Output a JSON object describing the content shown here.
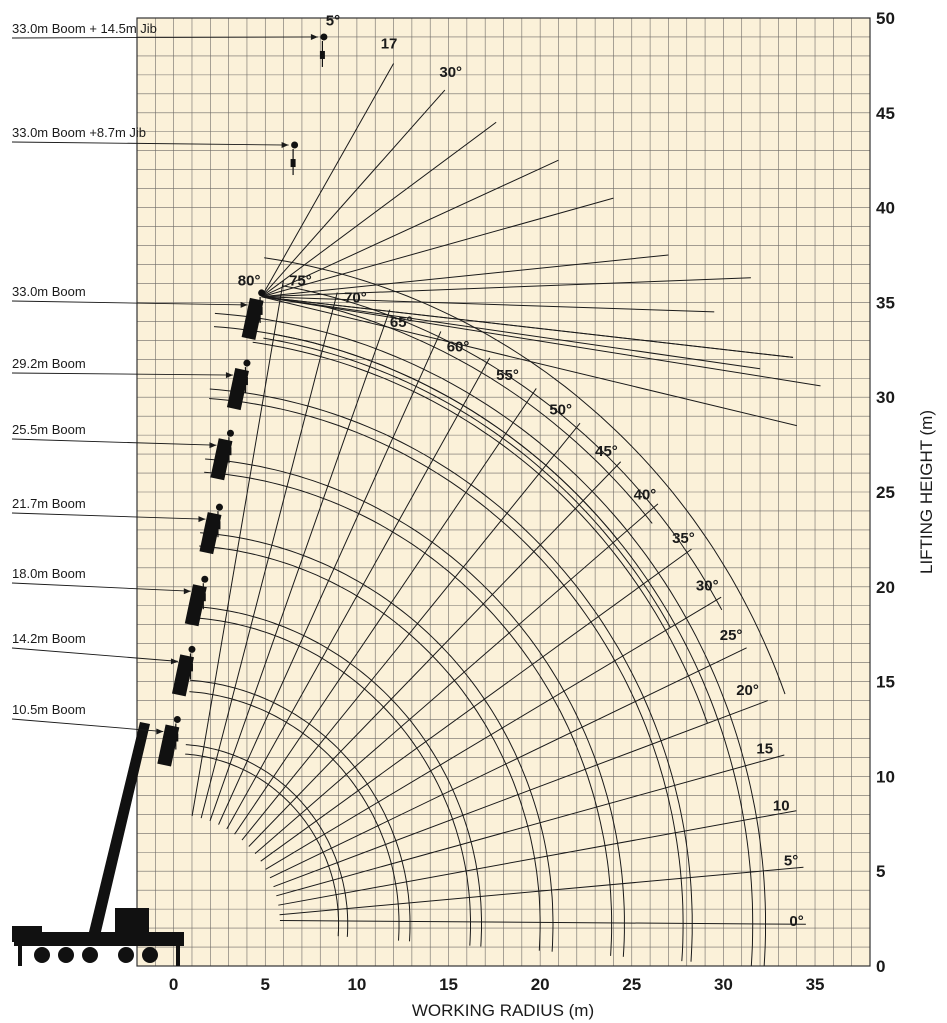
{
  "chart_data": {
    "type": "range-diagram",
    "xlabel": "WORKING RADIUS (m)",
    "ylabel": "LIFTING HEIGHT (m)",
    "xlim": [
      -2,
      38
    ],
    "ylim": [
      0,
      50
    ],
    "grid": true,
    "background": "#fbf1d9",
    "x_ticks": [
      "0",
      "5",
      "10",
      "15",
      "20",
      "25",
      "30",
      "35"
    ],
    "y_ticks": [
      "0",
      "5",
      "10",
      "15",
      "20",
      "25",
      "30",
      "35",
      "40",
      "45",
      "50"
    ],
    "boom_configurations": [
      {
        "label": "33.0m Boom + 14.5m Jib",
        "tip": [
          8.2,
          49.0
        ]
      },
      {
        "label": "33.0m Boom +8.7m Jib",
        "tip": [
          6.6,
          43.3
        ]
      },
      {
        "label": "33.0m Boom",
        "tip": [
          4.8,
          35.5
        ]
      },
      {
        "label": "29.2m Boom",
        "tip": [
          4.0,
          31.8
        ]
      },
      {
        "label": "25.5m Boom",
        "tip": [
          3.1,
          28.1
        ]
      },
      {
        "label": "21.7m Boom",
        "tip": [
          2.5,
          24.2
        ]
      },
      {
        "label": "18.0m Boom",
        "tip": [
          1.7,
          20.4
        ]
      },
      {
        "label": "14.2m Boom",
        "tip": [
          1.0,
          16.7
        ]
      },
      {
        "label": "10.5m Boom",
        "tip": [
          0.2,
          13.0
        ]
      }
    ],
    "boom_angle_labels": [
      {
        "text": "80°",
        "x": 3.5,
        "y": 35.9
      },
      {
        "text": "75°",
        "x": 6.3,
        "y": 35.9
      },
      {
        "text": "70°",
        "x": 9.3,
        "y": 35.0
      },
      {
        "text": "65°",
        "x": 11.8,
        "y": 33.7
      },
      {
        "text": "60°",
        "x": 14.9,
        "y": 32.4
      },
      {
        "text": "55°",
        "x": 17.6,
        "y": 30.9
      },
      {
        "text": "50°",
        "x": 20.5,
        "y": 29.1
      },
      {
        "text": "45°",
        "x": 23.0,
        "y": 26.9
      },
      {
        "text": "40°",
        "x": 25.1,
        "y": 24.6
      },
      {
        "text": "35°",
        "x": 27.2,
        "y": 22.3
      },
      {
        "text": "30°",
        "x": 28.5,
        "y": 19.8
      },
      {
        "text": "25°",
        "x": 29.8,
        "y": 17.2
      },
      {
        "text": "20°",
        "x": 30.7,
        "y": 14.3
      },
      {
        "text": "15",
        "x": 31.8,
        "y": 11.2
      },
      {
        "text": "10",
        "x": 32.7,
        "y": 8.2
      },
      {
        "text": "5°",
        "x": 33.3,
        "y": 5.3
      },
      {
        "text": "0°",
        "x": 33.6,
        "y": 2.1
      }
    ],
    "jib_angle_labels": [
      {
        "text": "5°",
        "x": 8.3,
        "y": 49.6
      },
      {
        "text": "17",
        "x": 11.3,
        "y": 48.4
      },
      {
        "text": "30°",
        "x": 14.5,
        "y": 46.9
      }
    ],
    "boom_arc_radii": [
      9.0,
      9.5,
      12.3,
      12.9,
      16.2,
      16.8,
      20.0,
      20.7,
      23.9,
      24.6,
      27.8,
      28.3,
      31.6,
      32.3
    ],
    "jib_outer_arcs": [
      {
        "r": 31.0,
        "from_deg": 20,
        "to_deg": 82
      },
      {
        "r": 31.3,
        "from_deg": 30,
        "to_deg": 81
      },
      {
        "r": 31.6,
        "from_deg": 40,
        "to_deg": 80
      },
      {
        "r": 35.5,
        "from_deg": 20,
        "to_deg": 82
      },
      {
        "r": 34.2,
        "from_deg": 29,
        "to_deg": 80
      },
      {
        "r": 33.6,
        "from_deg": 39,
        "to_deg": 76
      }
    ]
  }
}
